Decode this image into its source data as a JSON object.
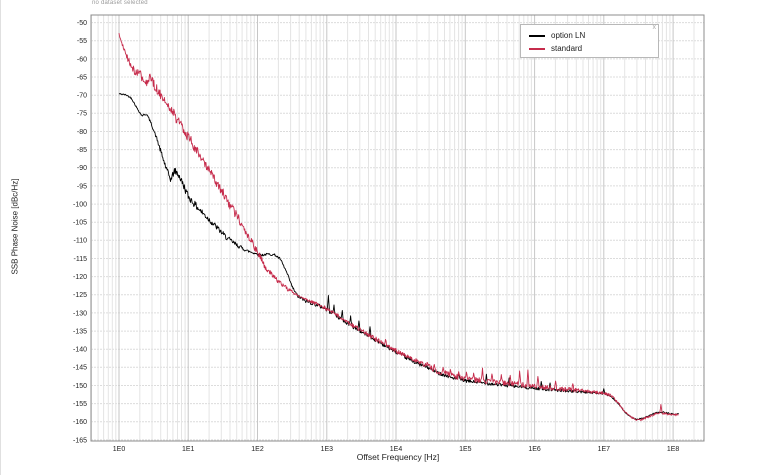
{
  "app": {
    "status_note": "no dataset selected",
    "legend_close_label": "x"
  },
  "chart_data": {
    "type": "line",
    "title": "",
    "xlabel": "Offset Frequency [Hz]",
    "ylabel": "SSB Phase Noise [dBc/Hz]",
    "x_scale": "log",
    "x_tick_labels": [
      "1E0",
      "1E1",
      "1E2",
      "1E3",
      "1E4",
      "1E5",
      "1E6",
      "1E7",
      "1E8"
    ],
    "x_tick_log10": [
      0,
      1,
      2,
      3,
      4,
      5,
      6,
      7,
      8
    ],
    "xlim_log10": [
      -0.404,
      8.446
    ],
    "y_ticks": [
      -50,
      -55,
      -60,
      -65,
      -70,
      -75,
      -80,
      -85,
      -90,
      -95,
      -100,
      -105,
      -110,
      -115,
      -120,
      -125,
      -130,
      -135,
      -140,
      -145,
      -150,
      -155,
      -160,
      -165
    ],
    "ylim": [
      -165.3,
      -47.9
    ],
    "grid": true,
    "legend_position": "top-right",
    "style": {
      "frame_color": "#8c8c8c",
      "grid_major_color": "#c6c6c6",
      "grid_minor_color": "#e4e4e4",
      "grid_horizontal_color": "#dcdcdc",
      "tick_label_color": "#222222",
      "noise_seed": 42
    },
    "series": [
      {
        "name": "option LN",
        "color": "#000000",
        "points": [
          [
            0.0,
            -69.6
          ],
          [
            0.1,
            -69.9
          ],
          [
            0.18,
            -70.8
          ],
          [
            0.26,
            -73.6
          ],
          [
            0.33,
            -75.6
          ],
          [
            0.4,
            -75.2
          ],
          [
            0.46,
            -77.6
          ],
          [
            0.55,
            -82.2
          ],
          [
            0.62,
            -86.6
          ],
          [
            0.7,
            -91.2
          ],
          [
            0.75,
            -93.3
          ],
          [
            0.8,
            -90.8
          ],
          [
            0.86,
            -91.9
          ],
          [
            0.93,
            -94.8
          ],
          [
            1.0,
            -97.9
          ],
          [
            1.12,
            -100.7
          ],
          [
            1.25,
            -103.3
          ],
          [
            1.4,
            -106.2
          ],
          [
            1.55,
            -109.2
          ],
          [
            1.7,
            -111.3
          ],
          [
            1.85,
            -112.9
          ],
          [
            1.95,
            -113.5
          ],
          [
            2.05,
            -114.1
          ],
          [
            2.15,
            -113.8
          ],
          [
            2.25,
            -114.0
          ],
          [
            2.33,
            -115.2
          ],
          [
            2.42,
            -118.8
          ],
          [
            2.5,
            -122.8
          ],
          [
            2.58,
            -125.4
          ],
          [
            2.7,
            -126.8
          ],
          [
            2.82,
            -127.5
          ],
          [
            2.95,
            -128.5
          ],
          [
            3.1,
            -130.3
          ],
          [
            3.3,
            -132.9
          ],
          [
            3.5,
            -135.2
          ],
          [
            3.7,
            -137.4
          ],
          [
            3.9,
            -139.7
          ],
          [
            4.0,
            -140.8
          ],
          [
            4.2,
            -142.9
          ],
          [
            4.33,
            -144.1
          ],
          [
            4.45,
            -145.0
          ],
          [
            4.6,
            -146.5
          ],
          [
            4.8,
            -147.8
          ],
          [
            5.0,
            -148.7
          ],
          [
            5.25,
            -149.3
          ],
          [
            5.5,
            -149.8
          ],
          [
            5.75,
            -150.3
          ],
          [
            6.0,
            -150.8
          ],
          [
            6.25,
            -151.2
          ],
          [
            6.5,
            -151.5
          ],
          [
            6.75,
            -151.9
          ],
          [
            7.0,
            -152.3
          ],
          [
            7.1,
            -152.9
          ],
          [
            7.2,
            -154.8
          ],
          [
            7.3,
            -157.3
          ],
          [
            7.4,
            -158.9
          ],
          [
            7.48,
            -159.3
          ],
          [
            7.56,
            -159.1
          ],
          [
            7.66,
            -158.3
          ],
          [
            7.76,
            -157.5
          ],
          [
            7.86,
            -157.4
          ],
          [
            7.94,
            -157.7
          ],
          [
            8.02,
            -158.0
          ],
          [
            8.08,
            -157.7
          ]
        ],
        "noise_profile": [
          [
            0.0,
            0.15
          ],
          [
            0.5,
            0.35
          ],
          [
            0.65,
            0.9
          ],
          [
            1.0,
            1.0
          ],
          [
            1.7,
            0.6
          ],
          [
            1.9,
            0.35
          ],
          [
            2.3,
            0.3
          ],
          [
            2.6,
            0.45
          ],
          [
            3.0,
            0.6
          ],
          [
            3.8,
            0.5
          ],
          [
            4.5,
            0.45
          ],
          [
            5.5,
            0.45
          ],
          [
            6.6,
            0.35
          ],
          [
            7.15,
            0.2
          ],
          [
            8.08,
            0.2
          ]
        ],
        "spikes": [
          [
            3.02,
            -125.2
          ],
          [
            3.1,
            -127.8
          ],
          [
            3.22,
            -129.3
          ],
          [
            3.34,
            -130.8
          ],
          [
            3.46,
            -132.2
          ],
          [
            3.62,
            -133.8
          ],
          [
            4.9,
            -146.5
          ],
          [
            5.3,
            -146.9
          ],
          [
            5.63,
            -147.9
          ],
          [
            6.1,
            -148.9
          ],
          [
            6.22,
            -149.3
          ],
          [
            7.0,
            -150.9
          ]
        ]
      },
      {
        "name": "standard",
        "color": "#c62c4c",
        "points": [
          [
            0.0,
            -53.2
          ],
          [
            0.05,
            -56.2
          ],
          [
            0.1,
            -58.9
          ],
          [
            0.16,
            -61.3
          ],
          [
            0.22,
            -63.3
          ],
          [
            0.28,
            -63.5
          ],
          [
            0.34,
            -65.2
          ],
          [
            0.4,
            -66.3
          ],
          [
            0.45,
            -65.4
          ],
          [
            0.5,
            -67.0
          ],
          [
            0.58,
            -69.2
          ],
          [
            0.66,
            -71.4
          ],
          [
            0.75,
            -74.0
          ],
          [
            0.85,
            -76.9
          ],
          [
            1.0,
            -81.5
          ],
          [
            1.15,
            -86.2
          ],
          [
            1.3,
            -90.8
          ],
          [
            1.45,
            -95.4
          ],
          [
            1.6,
            -100.1
          ],
          [
            1.75,
            -104.8
          ],
          [
            1.9,
            -110.0
          ],
          [
            2.0,
            -113.3
          ],
          [
            2.12,
            -117.5
          ],
          [
            2.25,
            -120.4
          ],
          [
            2.4,
            -122.9
          ],
          [
            2.55,
            -124.9
          ],
          [
            2.7,
            -126.3
          ],
          [
            2.85,
            -127.5
          ],
          [
            2.95,
            -128.3
          ],
          [
            3.1,
            -130.0
          ],
          [
            3.3,
            -132.6
          ],
          [
            3.5,
            -134.9
          ],
          [
            3.7,
            -137.1
          ],
          [
            3.9,
            -139.4
          ],
          [
            4.0,
            -140.4
          ],
          [
            4.2,
            -142.5
          ],
          [
            4.4,
            -144.2
          ],
          [
            4.6,
            -146.0
          ],
          [
            4.8,
            -147.2
          ],
          [
            5.0,
            -148.1
          ],
          [
            5.25,
            -148.7
          ],
          [
            5.5,
            -149.2
          ],
          [
            5.75,
            -149.7
          ],
          [
            6.0,
            -150.2
          ],
          [
            6.25,
            -150.7
          ],
          [
            6.5,
            -151.1
          ],
          [
            6.75,
            -151.6
          ],
          [
            7.0,
            -152.1
          ],
          [
            7.1,
            -152.7
          ],
          [
            7.2,
            -154.6
          ],
          [
            7.3,
            -157.1
          ],
          [
            7.4,
            -158.8
          ],
          [
            7.48,
            -159.5
          ],
          [
            7.56,
            -159.3
          ],
          [
            7.66,
            -158.5
          ],
          [
            7.76,
            -157.7
          ],
          [
            7.86,
            -157.6
          ],
          [
            7.94,
            -157.9
          ],
          [
            8.02,
            -158.2
          ],
          [
            8.08,
            -157.9
          ]
        ],
        "noise_profile": [
          [
            0.0,
            0.4
          ],
          [
            0.15,
            0.9
          ],
          [
            0.35,
            1.3
          ],
          [
            0.9,
            1.5
          ],
          [
            1.6,
            1.3
          ],
          [
            1.95,
            1.1
          ],
          [
            2.2,
            0.7
          ],
          [
            2.6,
            0.45
          ],
          [
            3.0,
            0.55
          ],
          [
            3.8,
            0.6
          ],
          [
            4.5,
            0.75
          ],
          [
            5.6,
            0.75
          ],
          [
            6.5,
            0.6
          ],
          [
            7.1,
            0.35
          ],
          [
            7.3,
            0.25
          ],
          [
            8.08,
            0.3
          ]
        ],
        "spikes": [
          [
            3.85,
            -137.3
          ],
          [
            4.32,
            -143.2
          ],
          [
            4.45,
            -143.6
          ],
          [
            4.55,
            -144.2
          ],
          [
            4.68,
            -145.0
          ],
          [
            4.78,
            -145.6
          ],
          [
            4.9,
            -146.2
          ],
          [
            5.02,
            -146.3
          ],
          [
            5.12,
            -146.6
          ],
          [
            5.25,
            -145.2
          ],
          [
            5.38,
            -146.8
          ],
          [
            5.52,
            -147.0
          ],
          [
            5.65,
            -147.2
          ],
          [
            5.78,
            -146.0
          ],
          [
            5.9,
            -145.7
          ],
          [
            6.05,
            -147.5
          ],
          [
            6.3,
            -148.8
          ],
          [
            6.55,
            -149.5
          ],
          [
            7.82,
            -155.2
          ]
        ]
      }
    ]
  },
  "plot_geometry_note": {}
}
